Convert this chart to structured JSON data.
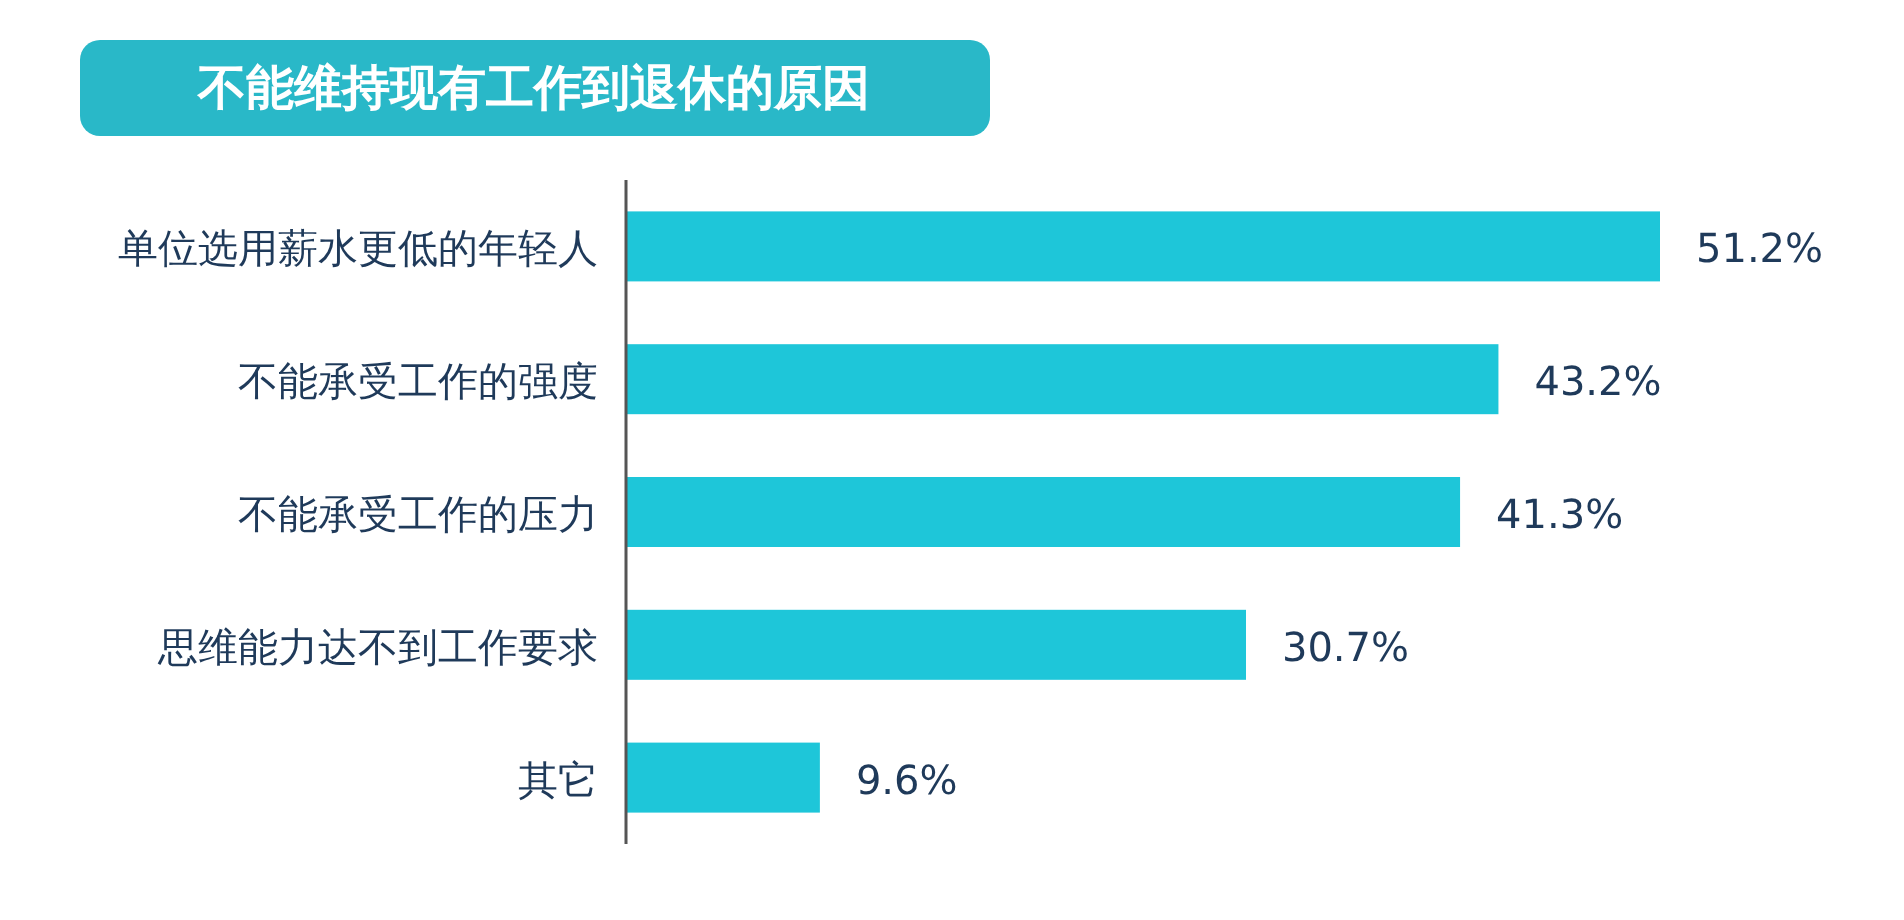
{
  "chart_data": {
    "type": "bar",
    "orientation": "horizontal",
    "title": "不能维持现有工作到退休的原因",
    "categories": [
      "单位选用薪水更低的年轻人",
      "不能承受工作的强度",
      "不能承受工作的压力",
      "思维能力达不到工作要求",
      "其它"
    ],
    "values": [
      51.2,
      43.2,
      41.3,
      30.7,
      9.6
    ],
    "value_labels": [
      "51.2%",
      "43.2%",
      "41.3%",
      "30.7%",
      "9.6%"
    ],
    "color": "#1ec6d9"
  }
}
